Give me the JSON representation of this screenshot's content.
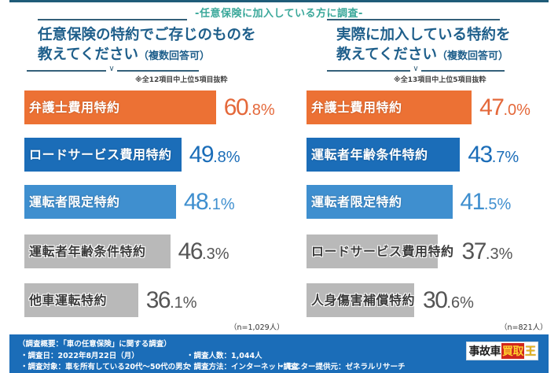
{
  "subtitle": "-任意保険に加入している方に調査-",
  "chart_data": [
    {
      "type": "bar",
      "orientation": "horizontal",
      "title": "任意保険の特約でご存じのものを教えてください（複数回答可）",
      "title_line1": "任意保険の特約でご存じのものを",
      "title_line2": "教えてください",
      "title_suffix": "（複数回答可）",
      "note": "※全12項目中上位5項目抜粋",
      "sample": "（n=1,029人）",
      "unit": "%",
      "categories": [
        "弁護士費用特約",
        "ロードサービス費用特約",
        "運転者限定特約",
        "運転者年齢条件特約",
        "他車運転特約"
      ],
      "values": [
        60.8,
        49.8,
        48.1,
        46.3,
        36.1
      ],
      "value_labels": [
        {
          "int": "60",
          "dec": ".8%"
        },
        {
          "int": "49",
          "dec": ".8%"
        },
        {
          "int": "48",
          "dec": ".1%"
        },
        {
          "int": "46",
          "dec": ".3%"
        },
        {
          "int": "36",
          "dec": ".1%"
        }
      ],
      "bar_colors": [
        "#ec7134",
        "#1b6db8",
        "#3f8fcf",
        "#b9b9b9",
        "#b9b9b9"
      ],
      "value_colors": [
        "#e4683a",
        "#1b6db8",
        "#3f8fcf",
        "#555555",
        "#555555"
      ],
      "label_styles": [
        "outlined",
        "outlined",
        "outlined",
        "plain",
        "plain"
      ]
    },
    {
      "type": "bar",
      "orientation": "horizontal",
      "title": "実際に加入している特約を教えてください（複数回答可）",
      "title_line1": "実際に加入している特約を",
      "title_line2": "教えてください",
      "title_suffix": "（複数回答可）",
      "note": "※全13項目中上位5項目抜粋",
      "sample": "（n=821人）",
      "unit": "%",
      "categories": [
        "弁護士費用特約",
        "運転者年齢条件特約",
        "運転者限定特約",
        "ロードサービス費用特約",
        "人身傷害補償特約"
      ],
      "values": [
        47.0,
        43.7,
        41.5,
        37.3,
        30.6
      ],
      "value_labels": [
        {
          "int": "47",
          "dec": ".0%"
        },
        {
          "int": "43",
          "dec": ".7%"
        },
        {
          "int": "41",
          "dec": ".5%"
        },
        {
          "int": "37",
          "dec": ".3%"
        },
        {
          "int": "30",
          "dec": ".6%"
        }
      ],
      "bar_colors": [
        "#ec7134",
        "#1b6db8",
        "#3f8fcf",
        "#b9b9b9",
        "#b9b9b9"
      ],
      "value_colors": [
        "#e4683a",
        "#1b6db8",
        "#3f8fcf",
        "#555555",
        "#555555"
      ],
      "label_styles": [
        "outlined",
        "outlined",
        "outlined",
        "plain",
        "plain"
      ]
    }
  ],
  "footer": {
    "title": "（調査概要：「車の任意保険」に関する調査）",
    "items": [
      "・調査日：2022年8月22日（月）",
      "・調査人数：1,044人",
      "・調査対象：車を所有している20代～50代の男女",
      "・調査方法：インターネット調査",
      "・モニター提供元：ゼネラルリサーチ"
    ],
    "logo": {
      "part1": "事故車",
      "part2": "買取",
      "part3": "王"
    }
  }
}
